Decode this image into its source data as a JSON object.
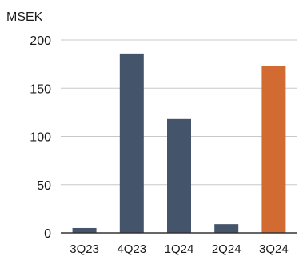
{
  "chart_data": {
    "type": "bar",
    "title": "",
    "unit_label": "MSEK",
    "categories": [
      "3Q23",
      "4Q23",
      "1Q24",
      "2Q24",
      "3Q24"
    ],
    "values": [
      5,
      186,
      118,
      9,
      173
    ],
    "highlight_category": "3Q24",
    "colors": {
      "default": "#44546a",
      "highlight": "#d26b32",
      "gridline": "#c8c8c8",
      "axis": "#333333",
      "text": "#1a1a1a"
    },
    "ylim": [
      0,
      200
    ],
    "yticks": [
      0,
      50,
      100,
      150,
      200
    ],
    "grid": true,
    "legend": "none"
  }
}
